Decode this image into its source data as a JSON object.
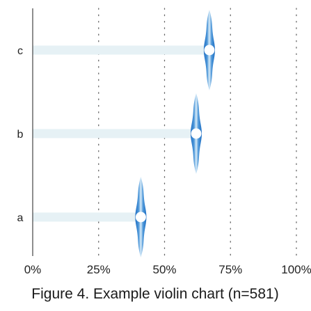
{
  "chart_data": {
    "type": "violin",
    "orientation": "horizontal",
    "title": "Figure 4. Example violin chart (n=581)",
    "xlabel": "",
    "ylabel": "",
    "xlim": [
      0,
      100
    ],
    "x_ticks": [
      0,
      25,
      50,
      75,
      100
    ],
    "x_tick_labels": [
      "0%",
      "25%",
      "50%",
      "75%",
      "100%"
    ],
    "grid": "vertical dotted",
    "categories": [
      "a",
      "b",
      "c"
    ],
    "series": [
      {
        "category": "a",
        "median": 41,
        "min": 38.5,
        "max": 43.5
      },
      {
        "category": "b",
        "median": 62,
        "min": 59.5,
        "max": 64.5
      },
      {
        "category": "c",
        "median": 67,
        "min": 64.5,
        "max": 69.5
      }
    ],
    "colors": {
      "violin_edge": "#1f6fc4",
      "violin_center": "#ffffff",
      "median_marker": "#ffffff",
      "range_bar": "#e6f1f5",
      "grid": "#666666",
      "axis": "#444444",
      "text": "#222222"
    }
  }
}
